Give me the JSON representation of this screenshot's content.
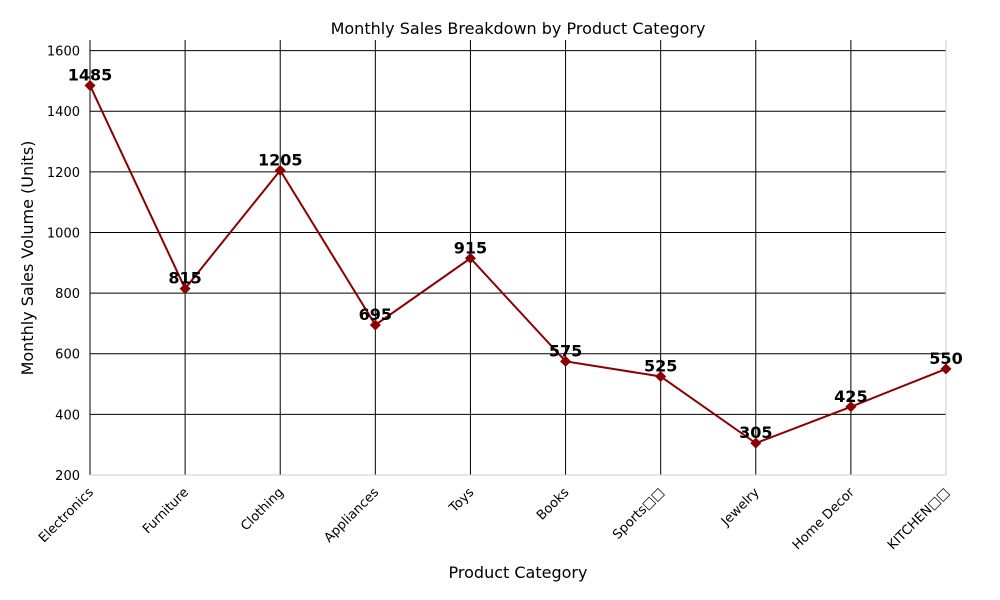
{
  "chart_data": {
    "type": "line",
    "title": "Monthly Sales Breakdown by Product Category",
    "xlabel": "Product Category",
    "ylabel": "Monthly Sales Volume (Units)",
    "categories": [
      "Electronics",
      "Furniture",
      "Clothing",
      "Appliances",
      "Toys",
      "Books",
      "Sports□□",
      "Jewelry",
      "Home Decor",
      "KITCHEN□□"
    ],
    "values": [
      1485,
      815,
      1205,
      695,
      915,
      575,
      525,
      305,
      425,
      550
    ],
    "ylim": [
      200,
      1635
    ],
    "yticks": [
      200,
      400,
      600,
      800,
      1000,
      1200,
      1400,
      1600
    ],
    "grid": true,
    "line_color": "#8b0000",
    "marker": "diamond"
  }
}
